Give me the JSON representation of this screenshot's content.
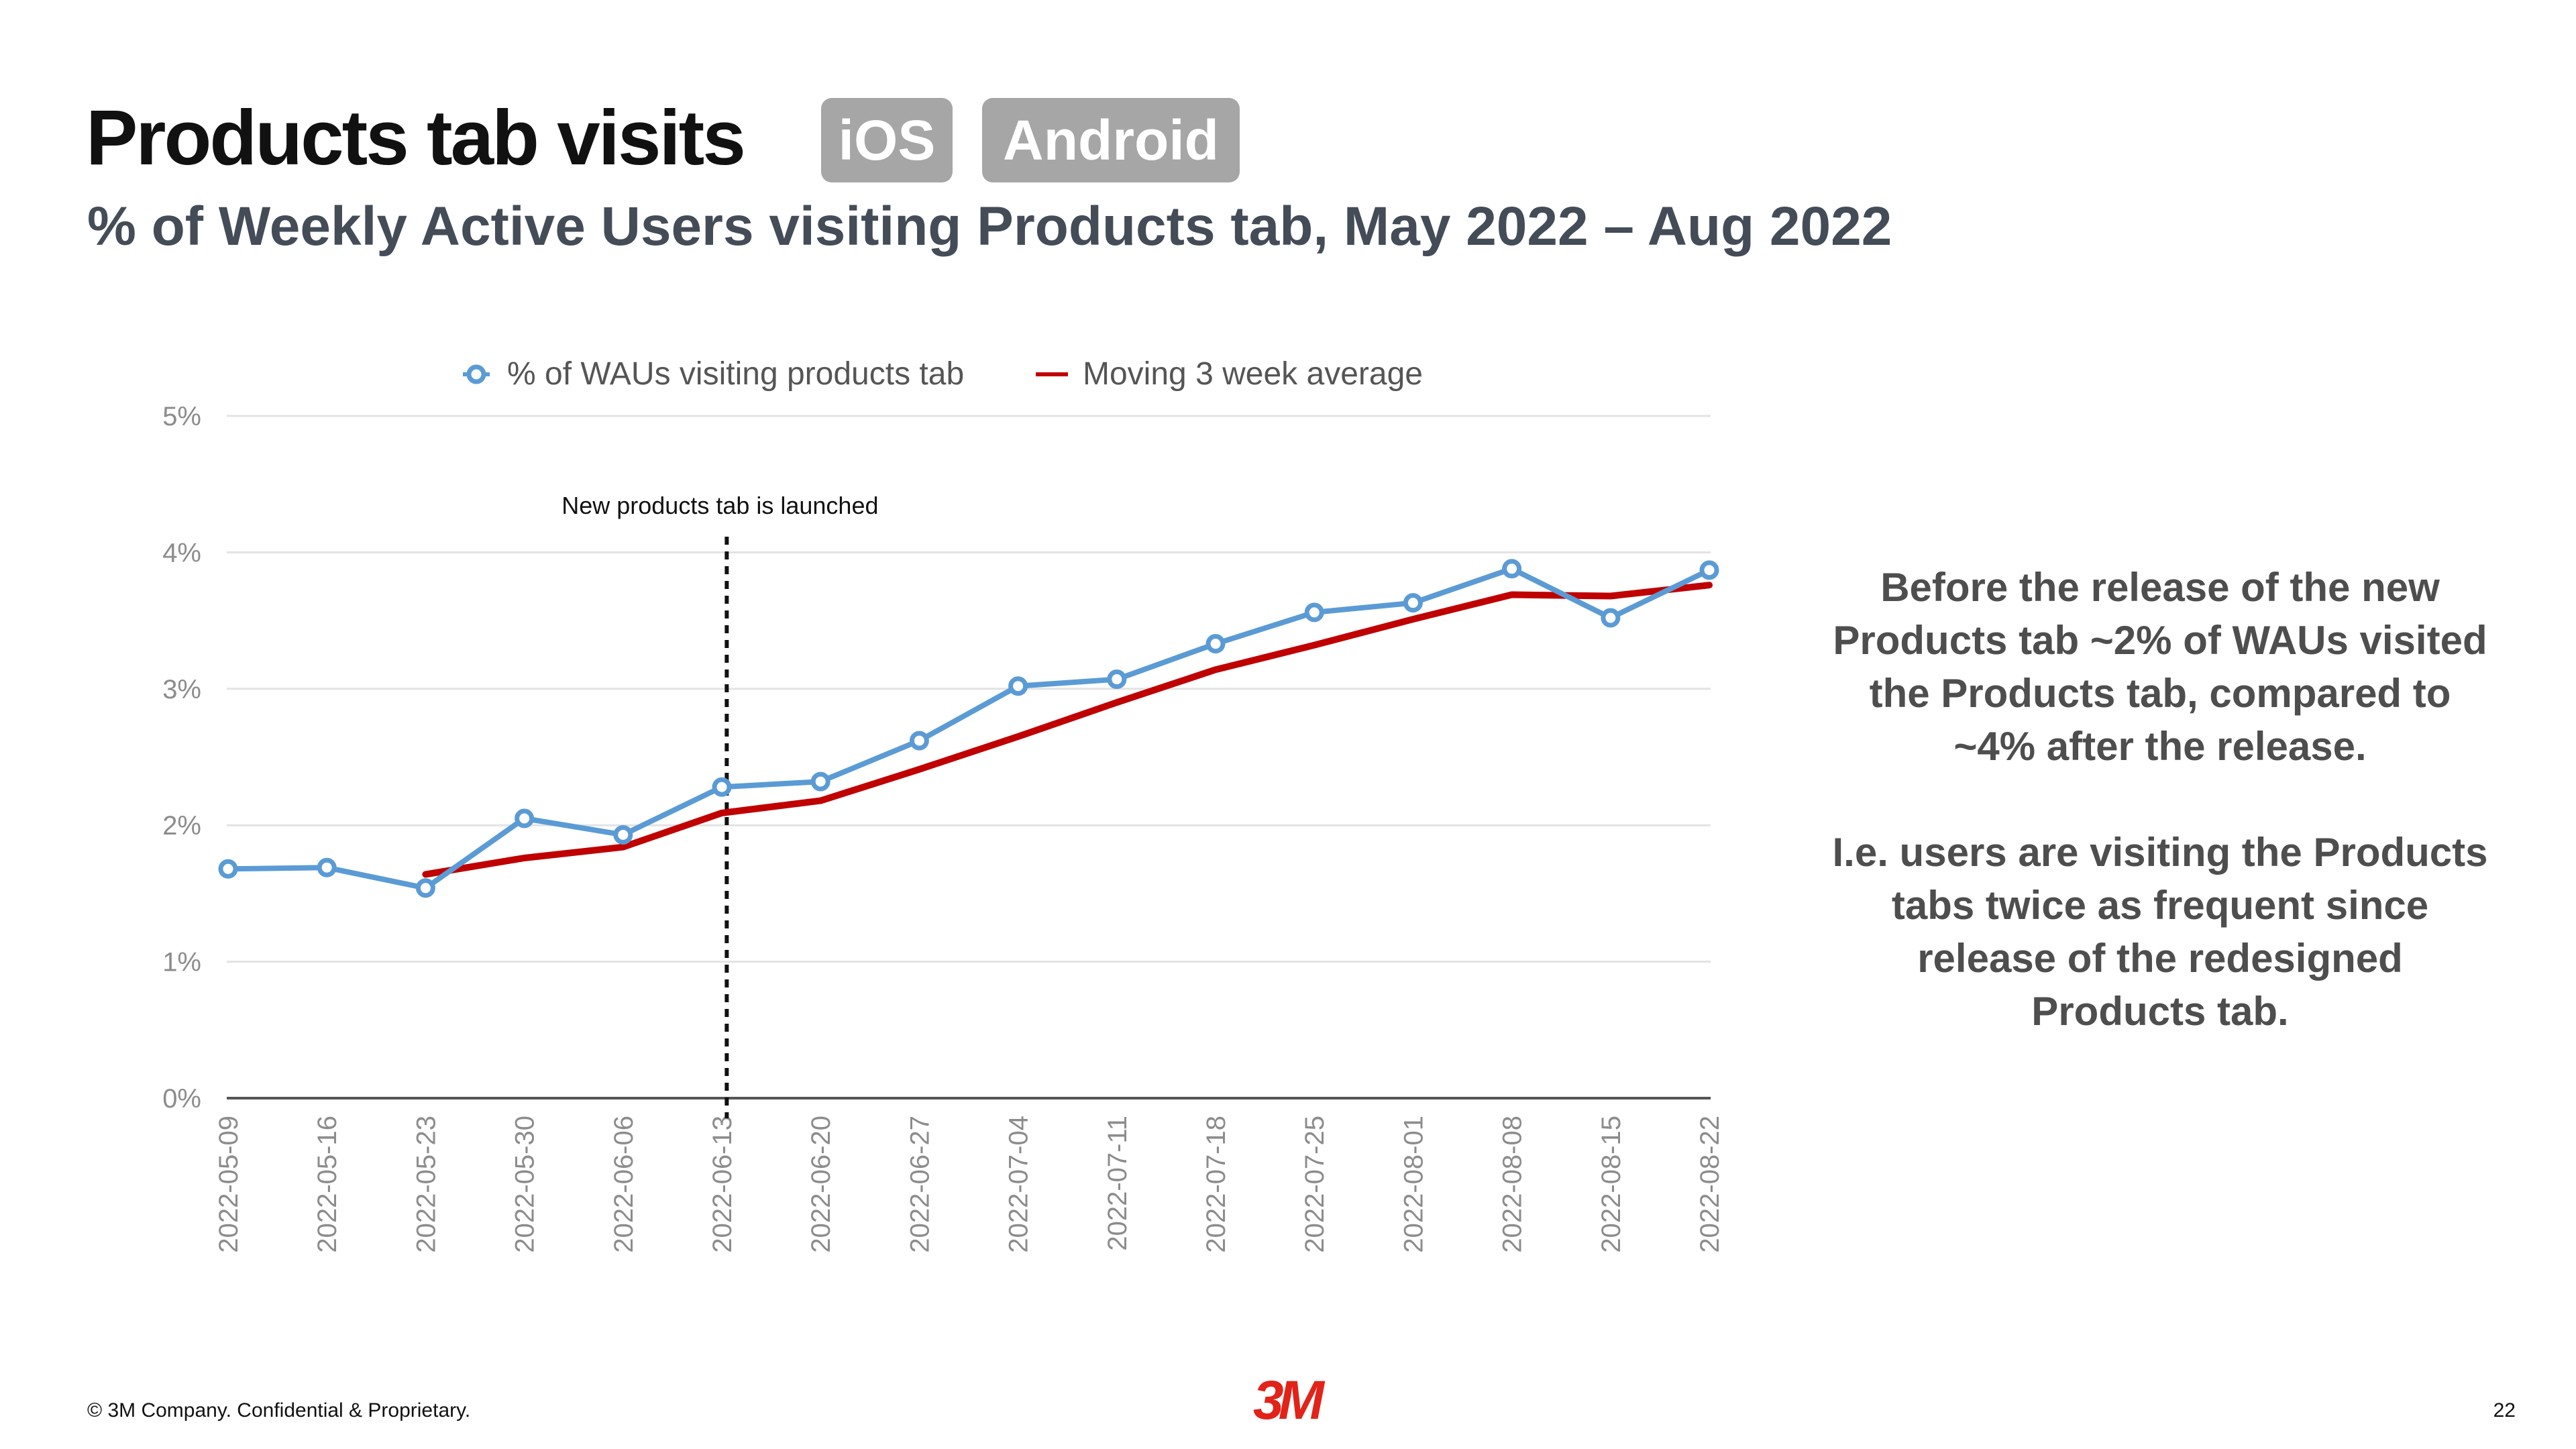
{
  "slide": {
    "title": "Products tab visits",
    "badges": [
      "iOS",
      "Android"
    ],
    "subtitle": "% of Weekly Active Users visiting Products tab, May 2022 – Aug 2022",
    "note_paragraphs": [
      "Before the release of the new Products tab ~2% of WAUs visited the Products tab, compared to ~4% after the release.",
      "I.e. users are visiting the Products tabs twice as frequent since release of the redesigned Products tab."
    ],
    "footer": "© 3M Company. Confidential & Proprietary.",
    "logo_text": "3M",
    "page_number": "22"
  },
  "chart_data": {
    "type": "line",
    "title": "",
    "xlabel": "",
    "ylabel": "",
    "categories": [
      "2022-05-09",
      "2022-05-16",
      "2022-05-23",
      "2022-05-30",
      "2022-06-06",
      "2022-06-13",
      "2022-06-20",
      "2022-06-27",
      "2022-07-04",
      "2022-07-11",
      "2022-07-18",
      "2022-07-25",
      "2022-08-01",
      "2022-08-08",
      "2022-08-15",
      "2022-08-22"
    ],
    "ylim": [
      0,
      5
    ],
    "yticks": [
      "0%",
      "1%",
      "2%",
      "3%",
      "4%",
      "5%"
    ],
    "grid": true,
    "legend_position": "top",
    "series": [
      {
        "name": "% of WAUs visiting products tab",
        "color": "#5b9bd5",
        "markers": true,
        "values": [
          1.68,
          1.69,
          1.54,
          2.05,
          1.93,
          2.28,
          2.32,
          2.62,
          3.02,
          3.07,
          3.33,
          3.56,
          3.63,
          3.88,
          3.52,
          3.87
        ]
      },
      {
        "name": "Moving 3 week average",
        "color": "#c00000",
        "markers": false,
        "values": [
          null,
          null,
          1.64,
          1.76,
          1.84,
          2.09,
          2.18,
          2.41,
          2.65,
          2.9,
          3.14,
          3.32,
          3.51,
          3.69,
          3.68,
          3.76
        ]
      }
    ],
    "annotations": [
      {
        "text": "New products tab is launched",
        "x_index": 5.05
      }
    ]
  }
}
